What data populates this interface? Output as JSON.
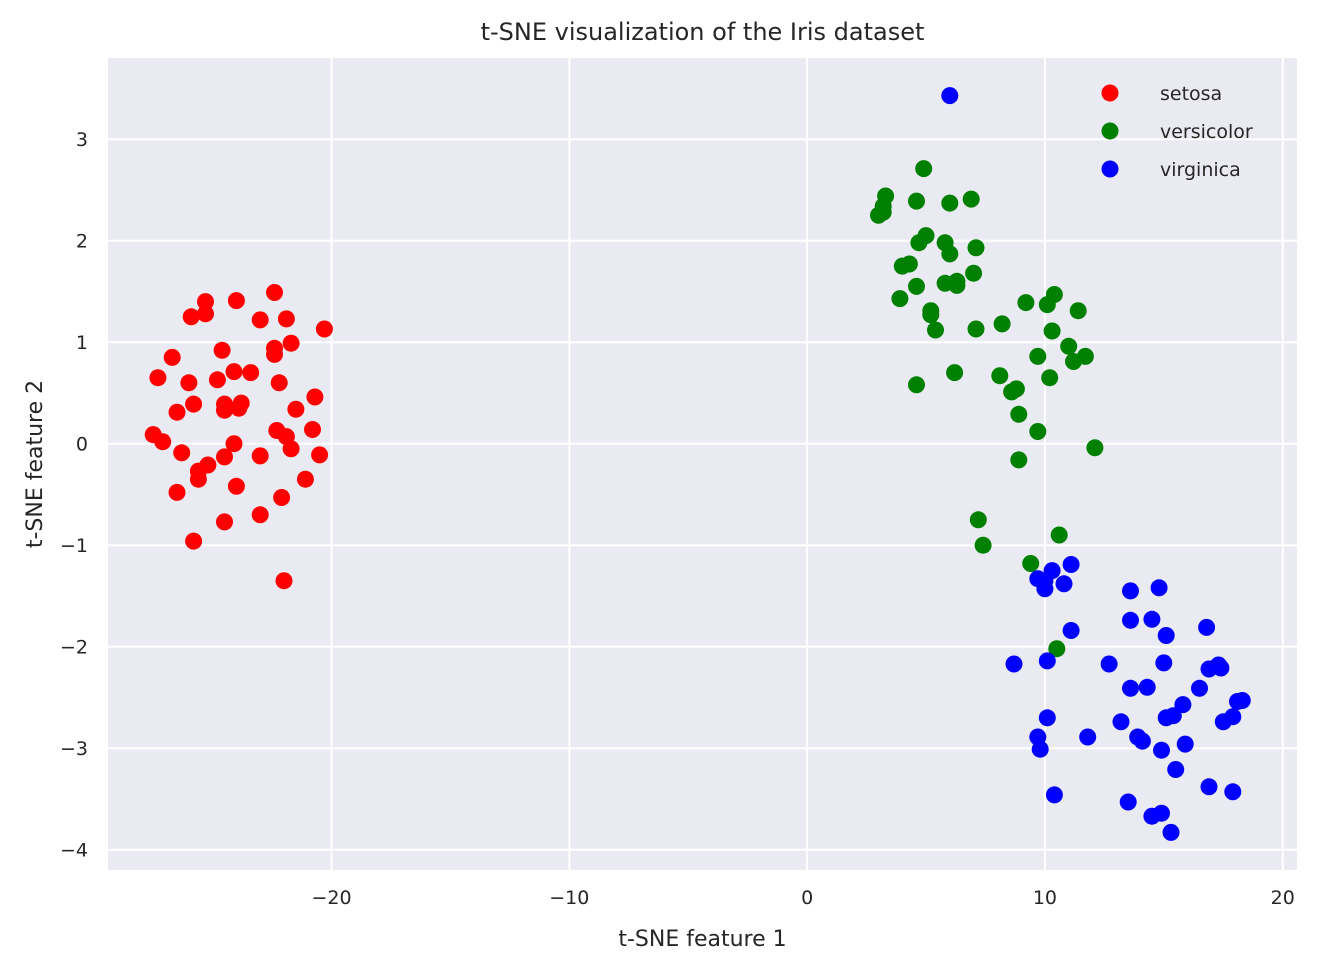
{
  "chart_data": {
    "type": "scatter",
    "title": "t-SNE visualization of the Iris dataset",
    "xlabel": "t-SNE feature 1",
    "ylabel": "t-SNE feature 2",
    "xlim": [
      -29.4,
      20.6
    ],
    "ylim": [
      -4.2,
      3.8
    ],
    "x_ticks": [
      -20,
      -10,
      0,
      10,
      20
    ],
    "y_ticks": [
      -4,
      -3,
      -2,
      -1,
      0,
      1,
      2,
      3
    ],
    "x_tick_labels": [
      "−20",
      "−10",
      "0",
      "10",
      "20"
    ],
    "y_tick_labels": [
      "−4",
      "−3",
      "−2",
      "−1",
      "0",
      "1",
      "2",
      "3"
    ],
    "grid": true,
    "legend_position": "top-right",
    "background_color": "#eaeaf2",
    "grid_color": "#ffffff",
    "series": [
      {
        "name": "setosa",
        "color": "#ff0000",
        "points": [
          [
            -22.4,
            1.49
          ],
          [
            -25.3,
            1.4
          ],
          [
            -24.0,
            1.41
          ],
          [
            -25.9,
            1.25
          ],
          [
            -25.3,
            1.28
          ],
          [
            -23.0,
            1.22
          ],
          [
            -21.9,
            1.23
          ],
          [
            -20.3,
            1.13
          ],
          [
            -21.7,
            0.99
          ],
          [
            -22.4,
            0.94
          ],
          [
            -22.4,
            0.88
          ],
          [
            -24.6,
            0.92
          ],
          [
            -26.7,
            0.85
          ],
          [
            -24.1,
            0.71
          ],
          [
            -23.4,
            0.7
          ],
          [
            -27.3,
            0.65
          ],
          [
            -26.0,
            0.6
          ],
          [
            -24.8,
            0.63
          ],
          [
            -22.2,
            0.6
          ],
          [
            -20.7,
            0.46
          ],
          [
            -25.8,
            0.39
          ],
          [
            -24.5,
            0.39
          ],
          [
            -23.8,
            0.4
          ],
          [
            -26.5,
            0.31
          ],
          [
            -24.5,
            0.33
          ],
          [
            -23.9,
            0.35
          ],
          [
            -21.5,
            0.34
          ],
          [
            -20.8,
            0.14
          ],
          [
            -22.3,
            0.13
          ],
          [
            -21.9,
            0.07
          ],
          [
            -27.5,
            0.09
          ],
          [
            -27.1,
            0.02
          ],
          [
            -24.1,
            0.0
          ],
          [
            -21.7,
            -0.05
          ],
          [
            -26.3,
            -0.09
          ],
          [
            -24.5,
            -0.13
          ],
          [
            -23.0,
            -0.12
          ],
          [
            -20.5,
            -0.11
          ],
          [
            -25.2,
            -0.21
          ],
          [
            -25.6,
            -0.27
          ],
          [
            -21.1,
            -0.35
          ],
          [
            -25.6,
            -0.35
          ],
          [
            -24.0,
            -0.42
          ],
          [
            -26.5,
            -0.48
          ],
          [
            -22.1,
            -0.53
          ],
          [
            -23.0,
            -0.7
          ],
          [
            -24.5,
            -0.77
          ],
          [
            -25.8,
            -0.96
          ],
          [
            -22.0,
            -1.35
          ]
        ]
      },
      {
        "name": "versicolor",
        "color": "#008000",
        "points": [
          [
            4.9,
            2.71
          ],
          [
            3.3,
            2.44
          ],
          [
            3.2,
            2.34
          ],
          [
            4.6,
            2.39
          ],
          [
            6.0,
            2.37
          ],
          [
            6.9,
            2.41
          ],
          [
            3.2,
            2.28
          ],
          [
            3.0,
            2.25
          ],
          [
            5.0,
            2.05
          ],
          [
            4.7,
            1.98
          ],
          [
            5.8,
            1.98
          ],
          [
            7.1,
            1.93
          ],
          [
            6.0,
            1.87
          ],
          [
            4.3,
            1.77
          ],
          [
            4.0,
            1.75
          ],
          [
            7.0,
            1.68
          ],
          [
            5.8,
            1.58
          ],
          [
            6.3,
            1.6
          ],
          [
            6.3,
            1.56
          ],
          [
            4.6,
            1.55
          ],
          [
            3.9,
            1.43
          ],
          [
            9.2,
            1.39
          ],
          [
            10.4,
            1.47
          ],
          [
            10.1,
            1.37
          ],
          [
            5.2,
            1.31
          ],
          [
            5.2,
            1.27
          ],
          [
            11.4,
            1.31
          ],
          [
            8.2,
            1.18
          ],
          [
            5.4,
            1.12
          ],
          [
            7.1,
            1.13
          ],
          [
            10.3,
            1.11
          ],
          [
            11.0,
            0.96
          ],
          [
            9.7,
            0.86
          ],
          [
            11.7,
            0.86
          ],
          [
            11.2,
            0.81
          ],
          [
            6.2,
            0.7
          ],
          [
            8.1,
            0.67
          ],
          [
            10.2,
            0.65
          ],
          [
            4.6,
            0.58
          ],
          [
            8.8,
            0.54
          ],
          [
            8.6,
            0.51
          ],
          [
            8.9,
            0.29
          ],
          [
            9.7,
            0.12
          ],
          [
            12.1,
            -0.04
          ],
          [
            8.9,
            -0.16
          ],
          [
            7.2,
            -0.75
          ],
          [
            10.6,
            -0.9
          ],
          [
            7.4,
            -1.0
          ],
          [
            9.4,
            -1.18
          ],
          [
            10.5,
            -2.02
          ]
        ]
      },
      {
        "name": "virginica",
        "color": "#0000ff",
        "points": [
          [
            6.0,
            3.43
          ],
          [
            10.3,
            -1.25
          ],
          [
            11.1,
            -1.19
          ],
          [
            9.7,
            -1.33
          ],
          [
            10.0,
            -1.35
          ],
          [
            10.8,
            -1.38
          ],
          [
            10.0,
            -1.43
          ],
          [
            14.8,
            -1.42
          ],
          [
            13.6,
            -1.45
          ],
          [
            13.6,
            -1.74
          ],
          [
            14.5,
            -1.73
          ],
          [
            11.1,
            -1.84
          ],
          [
            16.8,
            -1.81
          ],
          [
            15.1,
            -1.89
          ],
          [
            8.7,
            -2.17
          ],
          [
            10.1,
            -2.14
          ],
          [
            12.7,
            -2.17
          ],
          [
            15.0,
            -2.16
          ],
          [
            16.9,
            -2.22
          ],
          [
            17.3,
            -2.18
          ],
          [
            17.4,
            -2.21
          ],
          [
            13.6,
            -2.41
          ],
          [
            14.3,
            -2.4
          ],
          [
            16.5,
            -2.41
          ],
          [
            18.1,
            -2.54
          ],
          [
            18.3,
            -2.53
          ],
          [
            15.8,
            -2.57
          ],
          [
            10.1,
            -2.7
          ],
          [
            15.1,
            -2.7
          ],
          [
            15.4,
            -2.68
          ],
          [
            17.9,
            -2.69
          ],
          [
            13.2,
            -2.74
          ],
          [
            17.5,
            -2.74
          ],
          [
            11.8,
            -2.89
          ],
          [
            13.9,
            -2.89
          ],
          [
            14.1,
            -2.93
          ],
          [
            9.7,
            -2.89
          ],
          [
            15.9,
            -2.96
          ],
          [
            9.8,
            -3.01
          ],
          [
            14.9,
            -3.02
          ],
          [
            15.5,
            -3.21
          ],
          [
            16.9,
            -3.38
          ],
          [
            17.9,
            -3.43
          ],
          [
            10.4,
            -3.46
          ],
          [
            13.5,
            -3.53
          ],
          [
            14.5,
            -3.67
          ],
          [
            14.9,
            -3.64
          ],
          [
            15.3,
            -3.83
          ]
        ]
      }
    ]
  }
}
